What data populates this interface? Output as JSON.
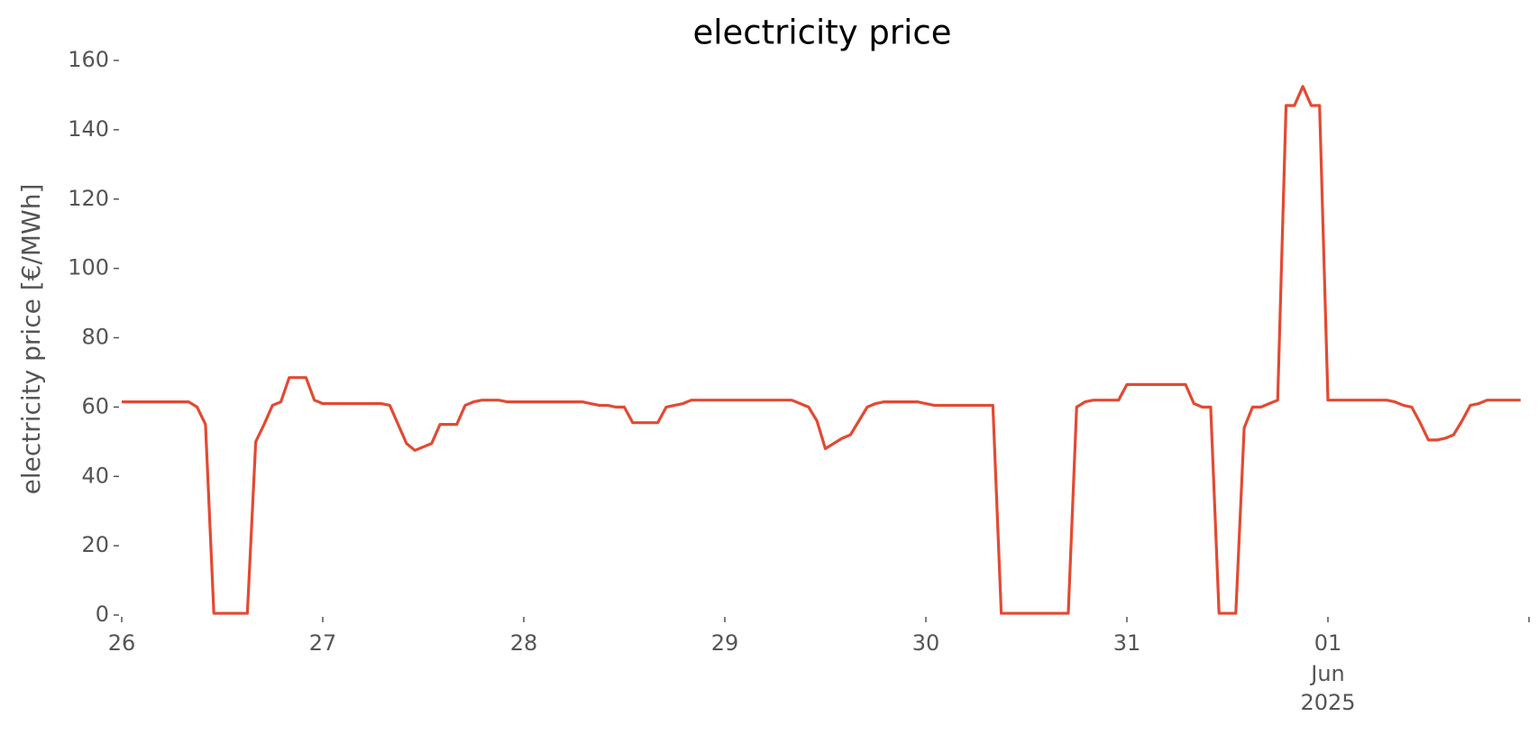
{
  "chart_data": {
    "type": "line",
    "title": "electricity price",
    "ylabel": "electricity price [€/MWh]",
    "x": [
      "2025-05-26 00:00",
      "2025-05-26 01:00",
      "2025-05-26 02:00",
      "2025-05-26 03:00",
      "2025-05-26 04:00",
      "2025-05-26 05:00",
      "2025-05-26 06:00",
      "2025-05-26 07:00",
      "2025-05-26 08:00",
      "2025-05-26 09:00",
      "2025-05-26 10:00",
      "2025-05-26 11:00",
      "2025-05-26 12:00",
      "2025-05-26 13:00",
      "2025-05-26 14:00",
      "2025-05-26 15:00",
      "2025-05-26 16:00",
      "2025-05-26 17:00",
      "2025-05-26 18:00",
      "2025-05-26 19:00",
      "2025-05-26 20:00",
      "2025-05-26 21:00",
      "2025-05-26 22:00",
      "2025-05-26 23:00",
      "2025-05-27 00:00",
      "2025-05-27 01:00",
      "2025-05-27 02:00",
      "2025-05-27 03:00",
      "2025-05-27 04:00",
      "2025-05-27 05:00",
      "2025-05-27 06:00",
      "2025-05-27 07:00",
      "2025-05-27 08:00",
      "2025-05-27 09:00",
      "2025-05-27 10:00",
      "2025-05-27 11:00",
      "2025-05-27 12:00",
      "2025-05-27 13:00",
      "2025-05-27 14:00",
      "2025-05-27 15:00",
      "2025-05-27 16:00",
      "2025-05-27 17:00",
      "2025-05-27 18:00",
      "2025-05-27 19:00",
      "2025-05-27 20:00",
      "2025-05-27 21:00",
      "2025-05-27 22:00",
      "2025-05-27 23:00",
      "2025-05-28 00:00",
      "2025-05-28 01:00",
      "2025-05-28 02:00",
      "2025-05-28 03:00",
      "2025-05-28 04:00",
      "2025-05-28 05:00",
      "2025-05-28 06:00",
      "2025-05-28 07:00",
      "2025-05-28 08:00",
      "2025-05-28 09:00",
      "2025-05-28 10:00",
      "2025-05-28 11:00",
      "2025-05-28 12:00",
      "2025-05-28 13:00",
      "2025-05-28 14:00",
      "2025-05-28 15:00",
      "2025-05-28 16:00",
      "2025-05-28 17:00",
      "2025-05-28 18:00",
      "2025-05-28 19:00",
      "2025-05-28 20:00",
      "2025-05-28 21:00",
      "2025-05-28 22:00",
      "2025-05-28 23:00",
      "2025-05-29 00:00",
      "2025-05-29 01:00",
      "2025-05-29 02:00",
      "2025-05-29 03:00",
      "2025-05-29 04:00",
      "2025-05-29 05:00",
      "2025-05-29 06:00",
      "2025-05-29 07:00",
      "2025-05-29 08:00",
      "2025-05-29 09:00",
      "2025-05-29 10:00",
      "2025-05-29 11:00",
      "2025-05-29 12:00",
      "2025-05-29 13:00",
      "2025-05-29 14:00",
      "2025-05-29 15:00",
      "2025-05-29 16:00",
      "2025-05-29 17:00",
      "2025-05-29 18:00",
      "2025-05-29 19:00",
      "2025-05-29 20:00",
      "2025-05-29 21:00",
      "2025-05-29 22:00",
      "2025-05-29 23:00",
      "2025-05-30 00:00",
      "2025-05-30 01:00",
      "2025-05-30 02:00",
      "2025-05-30 03:00",
      "2025-05-30 04:00",
      "2025-05-30 05:00",
      "2025-05-30 06:00",
      "2025-05-30 07:00",
      "2025-05-30 08:00",
      "2025-05-30 09:00",
      "2025-05-30 10:00",
      "2025-05-30 11:00",
      "2025-05-30 12:00",
      "2025-05-30 13:00",
      "2025-05-30 14:00",
      "2025-05-30 15:00",
      "2025-05-30 16:00",
      "2025-05-30 17:00",
      "2025-05-30 18:00",
      "2025-05-30 19:00",
      "2025-05-30 20:00",
      "2025-05-30 21:00",
      "2025-05-30 22:00",
      "2025-05-30 23:00",
      "2025-05-31 00:00",
      "2025-05-31 01:00",
      "2025-05-31 02:00",
      "2025-05-31 03:00",
      "2025-05-31 04:00",
      "2025-05-31 05:00",
      "2025-05-31 06:00",
      "2025-05-31 07:00",
      "2025-05-31 08:00",
      "2025-05-31 09:00",
      "2025-05-31 10:00",
      "2025-05-31 11:00",
      "2025-05-31 12:00",
      "2025-05-31 13:00",
      "2025-05-31 14:00",
      "2025-05-31 15:00",
      "2025-05-31 16:00",
      "2025-05-31 17:00",
      "2025-05-31 18:00",
      "2025-05-31 19:00",
      "2025-05-31 20:00",
      "2025-05-31 21:00",
      "2025-05-31 22:00",
      "2025-05-31 23:00",
      "2025-06-01 00:00",
      "2025-06-01 01:00",
      "2025-06-01 02:00",
      "2025-06-01 03:00",
      "2025-06-01 04:00",
      "2025-06-01 05:00",
      "2025-06-01 06:00",
      "2025-06-01 07:00",
      "2025-06-01 08:00",
      "2025-06-01 09:00",
      "2025-06-01 10:00",
      "2025-06-01 11:00",
      "2025-06-01 12:00",
      "2025-06-01 13:00",
      "2025-06-01 14:00",
      "2025-06-01 15:00",
      "2025-06-01 16:00",
      "2025-06-01 17:00",
      "2025-06-01 18:00",
      "2025-06-01 19:00",
      "2025-06-01 20:00",
      "2025-06-01 21:00",
      "2025-06-01 22:00",
      "2025-06-01 23:00"
    ],
    "series": [
      {
        "color": "#e24a33",
        "values": [
          61.5,
          61.5,
          61.5,
          61.5,
          61.5,
          61.5,
          61.5,
          61.5,
          61.5,
          60,
          55,
          0.5,
          0.5,
          0.5,
          0.5,
          0.5,
          50,
          55,
          60.5,
          61.5,
          68.5,
          68.5,
          68.5,
          62,
          61,
          61,
          61,
          61,
          61,
          61,
          61,
          61,
          60.5,
          55,
          49.5,
          47.5,
          48.5,
          49.5,
          55,
          55,
          55,
          60.5,
          61.5,
          62,
          62,
          62,
          61.5,
          61.5,
          61.5,
          61.5,
          61.5,
          61.5,
          61.5,
          61.5,
          61.5,
          61.5,
          61,
          60.5,
          60.5,
          60,
          60,
          55.5,
          55.5,
          55.5,
          55.5,
          60,
          60.5,
          61,
          62,
          62,
          62,
          62,
          62,
          62,
          62,
          62,
          62,
          62,
          62,
          62,
          62,
          61,
          60,
          56,
          48,
          49.5,
          51,
          52,
          56,
          60,
          61,
          61.5,
          61.5,
          61.5,
          61.5,
          61.5,
          61,
          60.5,
          60.5,
          60.5,
          60.5,
          60.5,
          60.5,
          60.5,
          60.5,
          0.5,
          0.5,
          0.5,
          0.5,
          0.5,
          0.5,
          0.5,
          0.5,
          0.5,
          60,
          61.5,
          62,
          62,
          62,
          62,
          66.5,
          66.5,
          66.5,
          66.5,
          66.5,
          66.5,
          66.5,
          66.5,
          61,
          60,
          60,
          0.5,
          0.5,
          0.5,
          54,
          60,
          60,
          61,
          62,
          147,
          147,
          152.5,
          147,
          147,
          62,
          62,
          62,
          62,
          62,
          62,
          62,
          62,
          61.5,
          60.5,
          60,
          55.5,
          50.5,
          50.5,
          51,
          52,
          56,
          60.5,
          61,
          62,
          62,
          62,
          62,
          62
        ]
      }
    ],
    "xlim": [
      "2025-05-26 00:00",
      "2025-06-02 00:00"
    ],
    "xticks": [
      {
        "value": "2025-05-26 00:00",
        "label": "26"
      },
      {
        "value": "2025-05-27 00:00",
        "label": "27"
      },
      {
        "value": "2025-05-28 00:00",
        "label": "28"
      },
      {
        "value": "2025-05-29 00:00",
        "label": "29"
      },
      {
        "value": "2025-05-30 00:00",
        "label": "30"
      },
      {
        "value": "2025-05-31 00:00",
        "label": "31"
      },
      {
        "value": "2025-06-01 00:00",
        "label": "01"
      },
      {
        "value": "2025-06-02 00:00",
        "label": null
      }
    ],
    "x_sublabels": [
      "Jun",
      "2025"
    ],
    "ylim": [
      0,
      160
    ],
    "yticks": [
      0,
      20,
      40,
      60,
      80,
      100,
      120,
      140,
      160
    ],
    "grid": false
  }
}
